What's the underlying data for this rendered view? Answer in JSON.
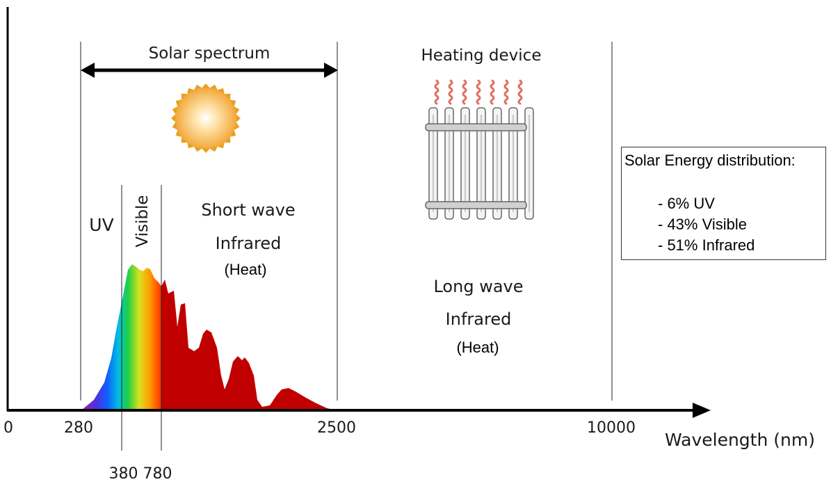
{
  "colors": {
    "axis": "#000000",
    "infrared": "#c00000",
    "uv": "#a020b0",
    "sun": "#f4b23c",
    "heat_waves": "#e07060",
    "heater": "#888888"
  },
  "axis": {
    "x_label": "Wavelength (nm)",
    "ticks": [
      {
        "label": "0"
      },
      {
        "label": "280"
      },
      {
        "label": "2500"
      },
      {
        "label": "10000"
      },
      {
        "label": "380 780"
      }
    ]
  },
  "solar": {
    "title": "Solar spectrum",
    "uv_label": "UV",
    "visible_label": "Visible",
    "short_wave": [
      "Short wave",
      "Infrared"
    ],
    "heat_note": "(Heat)"
  },
  "heating": {
    "title": "Heating device",
    "long_wave": [
      "Long wave",
      "Infrared"
    ],
    "heat_note": "(Heat)"
  },
  "legend": {
    "title": "Solar Energy distribution:",
    "items": [
      "- 6% UV",
      "- 43% Visible",
      "- 51% Infrared"
    ]
  },
  "icons": {
    "sun": "sun-icon",
    "heater": "radiator-icon",
    "waves": "heat-waves-icon",
    "arrow": "double-arrow-icon"
  }
}
